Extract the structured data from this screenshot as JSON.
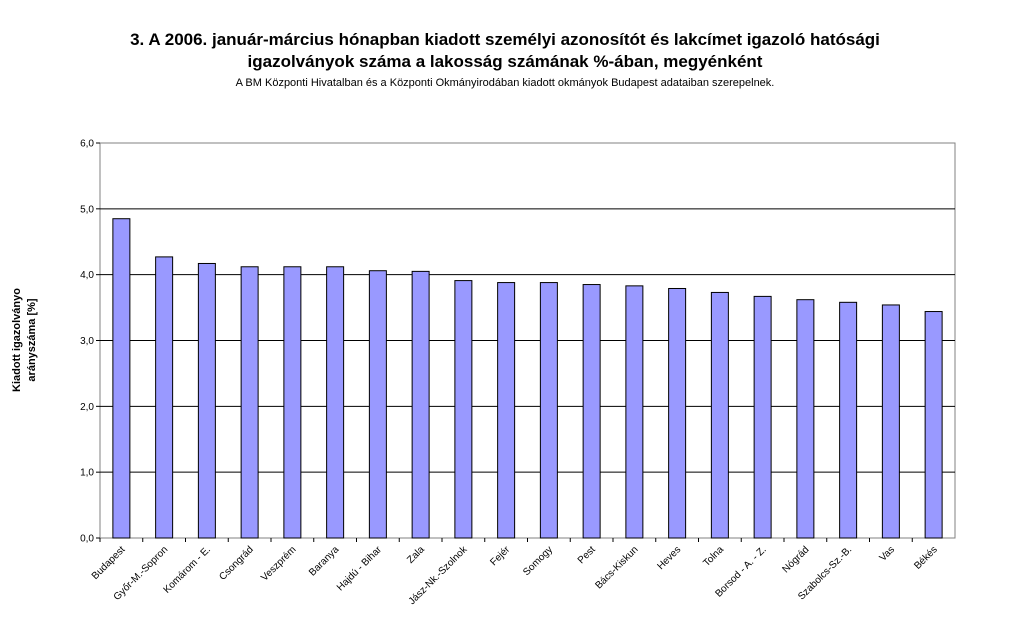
{
  "chart_data": {
    "type": "bar",
    "title_line1": "3. A 2006. január-március hónapban kiadott személyi azonosítót és lakcímet igazoló hatósági",
    "title_line2": "igazolványok száma a lakosság  számának %-ában, megyénként",
    "subtitle": "A BM Központi Hivatalban és a Központi Okmányirodában kiadott okmányok Budapest adataiban szerepelnek.",
    "ylabel_line1": "Kiadott igazolványo",
    "ylabel_line2": "arányszáma [%]",
    "xlabel": "",
    "ylim": [
      0,
      6
    ],
    "yticks": [
      "0,0",
      "1,0",
      "2,0",
      "3,0",
      "4,0",
      "5,0",
      "6,0"
    ],
    "grid": true,
    "bar_color": "#9999ff",
    "categories": [
      "Budapest",
      "Győr-M.-Sopron",
      "Komárom - E.",
      "Csongrád",
      "Veszprém",
      "Baranya",
      "Hajdú - Bihar",
      "Zala",
      "Jász-Nk.-Szolnok",
      "Fejér",
      "Somogy",
      "Pest",
      "Bács-Kiskun",
      "Heves",
      "Tolna",
      "Borsod - A. - Z.",
      "Nógrád",
      "Szabolcs-Sz.-B.",
      "Vas",
      "Békés"
    ],
    "values": [
      4.85,
      4.27,
      4.17,
      4.12,
      4.12,
      4.12,
      4.06,
      4.05,
      3.91,
      3.88,
      3.88,
      3.85,
      3.83,
      3.79,
      3.73,
      3.67,
      3.62,
      3.58,
      3.54,
      3.44
    ]
  }
}
